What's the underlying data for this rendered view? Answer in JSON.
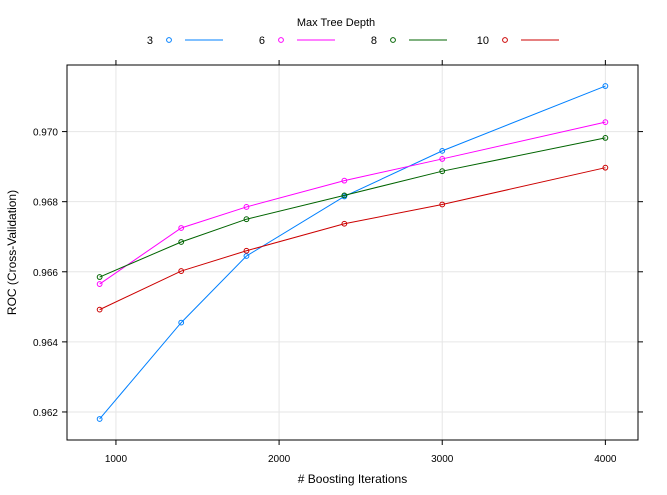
{
  "chart_data": {
    "type": "line",
    "title": "",
    "xlabel": "# Boosting Iterations",
    "ylabel": "ROC (Cross-Validation)",
    "xlim": [
      700,
      4200
    ],
    "ylim": [
      0.9612,
      0.9719
    ],
    "x_ticks": [
      1000,
      2000,
      3000,
      4000
    ],
    "y_ticks": [
      0.962,
      0.964,
      0.966,
      0.968,
      0.97
    ],
    "y_tick_labels": [
      "0.962",
      "0.964",
      "0.966",
      "0.968",
      "0.970"
    ],
    "grid": true,
    "legend": {
      "title": "Max Tree Depth",
      "placement": "top"
    },
    "series": [
      {
        "name": "3",
        "color": "#0080ff",
        "x": [
          900,
          1400,
          1800,
          2400,
          3000,
          4000
        ],
        "y": [
          0.9618,
          0.96455,
          0.96645,
          0.96815,
          0.96945,
          0.9713
        ]
      },
      {
        "name": "6",
        "color": "#ff00ff",
        "x": [
          900,
          1400,
          1800,
          2400,
          3000,
          4000
        ],
        "y": [
          0.96565,
          0.96725,
          0.96785,
          0.9686,
          0.96922,
          0.97027
        ]
      },
      {
        "name": "8",
        "color": "#006400",
        "x": [
          900,
          1400,
          1800,
          2400,
          3000,
          4000
        ],
        "y": [
          0.96585,
          0.96685,
          0.9675,
          0.96818,
          0.96887,
          0.96982
        ]
      },
      {
        "name": "10",
        "color": "#cc0000",
        "x": [
          900,
          1400,
          1800,
          2400,
          3000,
          4000
        ],
        "y": [
          0.96492,
          0.96602,
          0.9666,
          0.96737,
          0.96792,
          0.96897
        ]
      }
    ]
  }
}
